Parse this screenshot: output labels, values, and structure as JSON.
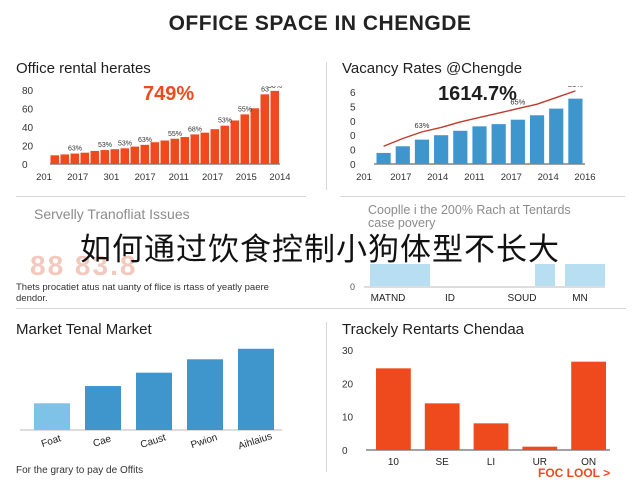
{
  "page": {
    "title": "OFFICE SPACE IN CHENGDE",
    "overlay_caption": "如何通过饮食控制小狗体型不长大",
    "overlay_ghost": "88 83.8"
  },
  "colors": {
    "orange": "#ef4a1d",
    "blue": "#3f96cc",
    "light_blue": "#7ec2e8",
    "red_line": "#c0392b"
  },
  "chart_data": [
    {
      "type": "bar",
      "title": "Office rental herates",
      "headline": "749%",
      "ylim": [
        0,
        85
      ],
      "y_ticks": [
        "80",
        "60",
        "40",
        "20",
        "0"
      ],
      "x_tick_labels": [
        "201",
        "2017",
        "301",
        "2017",
        "2011",
        "2017",
        "2015",
        "2014"
      ],
      "values": [
        10,
        11,
        12,
        13,
        15,
        16,
        17,
        18,
        20,
        22,
        25,
        27,
        29,
        31,
        34,
        36,
        40,
        44,
        50,
        57,
        64,
        80,
        84
      ],
      "data_labels": [
        {
          "index": 2,
          "text": "63%"
        },
        {
          "index": 5,
          "text": "53%"
        },
        {
          "index": 7,
          "text": "53%"
        },
        {
          "index": 9,
          "text": "63%"
        },
        {
          "index": 12,
          "text": "55%"
        },
        {
          "index": 14,
          "text": "68%"
        },
        {
          "index": 17,
          "text": "53%"
        },
        {
          "index": 19,
          "text": "55%"
        },
        {
          "index": 21,
          "text": "63"
        },
        {
          "index": 22,
          "text": "50%"
        }
      ]
    },
    {
      "type": "bar",
      "title": "Vacancy Rates @Chengde",
      "headline": "1614.7%",
      "ylim": [
        0,
        6.5
      ],
      "y_ticks": [
        "6",
        "5",
        "0",
        "0",
        "0",
        "0"
      ],
      "x_tick_labels": [
        "201",
        "2017",
        "2014",
        "2011",
        "2017",
        "2014",
        "2016"
      ],
      "values": [
        1.0,
        1.6,
        2.2,
        2.6,
        3.0,
        3.4,
        3.6,
        4.0,
        4.4,
        5.0,
        5.9
      ],
      "trend": [
        1.6,
        2.3,
        2.9,
        3.3,
        3.8,
        4.2,
        4.6,
        5.0,
        5.4,
        6.0,
        6.6
      ],
      "data_labels": [
        {
          "index": 2,
          "text": "63%"
        },
        {
          "index": 7,
          "text": "65%"
        },
        {
          "index": 10,
          "text": "L1%"
        }
      ]
    },
    {
      "type": "bar",
      "title": "Servelly Tranofliat Issues",
      "caption": "Thets procatiet atus nat uanty of flice is rtass of yeatly paere dendor.",
      "faded": true
    },
    {
      "type": "bar",
      "title": "Cooplle i the 200% Rach at Tentards case povery",
      "y_ticks": [
        "0"
      ],
      "categories": [
        "MATND",
        "ID",
        "SOUD",
        "MN"
      ],
      "faded": true
    },
    {
      "type": "bar",
      "title": "Market Tenal Market",
      "categories": [
        "Foat",
        "Cae",
        "Caust",
        "Pwion",
        "Aihlaius"
      ],
      "values": [
        28,
        46,
        60,
        74,
        85
      ],
      "ylim": [
        0,
        90
      ],
      "footnote": "For the grary to pay de Offits"
    },
    {
      "type": "bar",
      "title": "Trackely Rentarts Chendaa",
      "y_ticks": [
        "30",
        "20",
        "10",
        "0"
      ],
      "ylim": [
        0,
        30
      ],
      "categories": [
        "10",
        "SE",
        "LI",
        "UR",
        "ON"
      ],
      "values": [
        24.5,
        14,
        8,
        1,
        26.5
      ],
      "footnote": "FOC LOOL >"
    }
  ]
}
